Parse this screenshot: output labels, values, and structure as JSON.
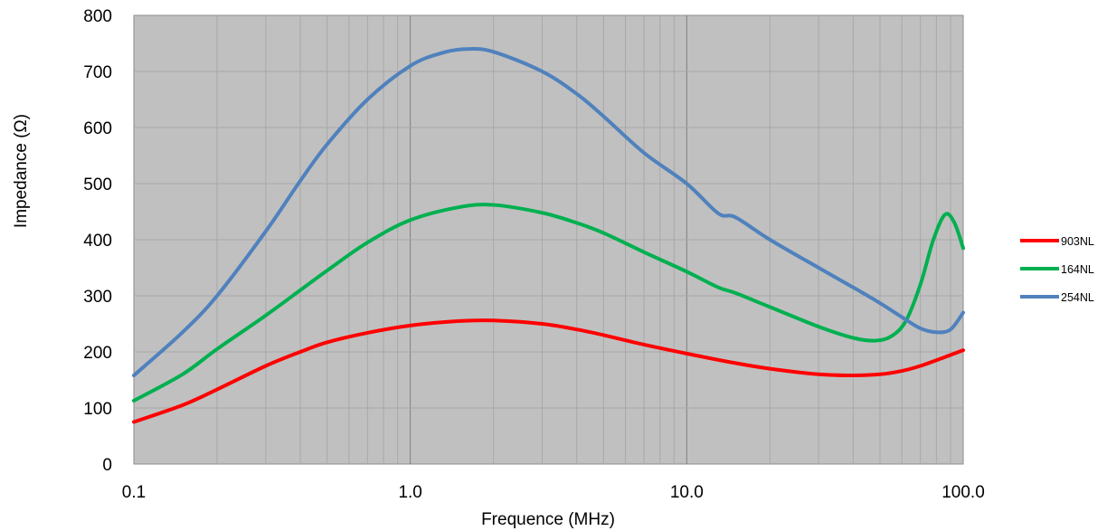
{
  "chart_data": {
    "type": "line",
    "xlabel": "Frequence (MHz)",
    "ylabel": "Impedance (Ω)",
    "x_scale": "log",
    "xlim": [
      0.1,
      100
    ],
    "ylim": [
      0,
      800
    ],
    "x_ticks": [
      0.1,
      1,
      10,
      100
    ],
    "x_tick_labels": [
      "0.1",
      "1.0",
      "10.0",
      "100.0"
    ],
    "y_ticks": [
      0,
      100,
      200,
      300,
      400,
      500,
      600,
      700,
      800
    ],
    "y_tick_labels": [
      "0",
      "100",
      "200",
      "300",
      "400",
      "500",
      "600",
      "700",
      "800"
    ],
    "grid": true,
    "plot_background": "#c0c0c0",
    "legend_position": "right",
    "series": [
      {
        "name": "903NL",
        "color": "#ff0000",
        "points": [
          [
            0.1,
            75
          ],
          [
            0.15,
            105
          ],
          [
            0.2,
            133
          ],
          [
            0.3,
            175
          ],
          [
            0.4,
            200
          ],
          [
            0.5,
            217
          ],
          [
            0.7,
            234
          ],
          [
            1.0,
            247
          ],
          [
            1.5,
            255
          ],
          [
            2.0,
            256
          ],
          [
            3.0,
            250
          ],
          [
            4.0,
            240
          ],
          [
            5.0,
            230
          ],
          [
            7.0,
            213
          ],
          [
            10.0,
            197
          ],
          [
            15.0,
            180
          ],
          [
            20.0,
            170
          ],
          [
            30.0,
            160
          ],
          [
            40.0,
            158
          ],
          [
            50.0,
            160
          ],
          [
            60.0,
            166
          ],
          [
            70.0,
            175
          ],
          [
            85.0,
            190
          ],
          [
            100.0,
            203
          ]
        ]
      },
      {
        "name": "164NL",
        "color": "#00b050",
        "points": [
          [
            0.1,
            113
          ],
          [
            0.15,
            160
          ],
          [
            0.2,
            205
          ],
          [
            0.3,
            265
          ],
          [
            0.4,
            310
          ],
          [
            0.5,
            345
          ],
          [
            0.7,
            395
          ],
          [
            1.0,
            435
          ],
          [
            1.5,
            458
          ],
          [
            2.0,
            462
          ],
          [
            3.0,
            448
          ],
          [
            4.0,
            430
          ],
          [
            5.0,
            412
          ],
          [
            7.0,
            378
          ],
          [
            10.0,
            343
          ],
          [
            13.0,
            315
          ],
          [
            15.0,
            305
          ],
          [
            20.0,
            280
          ],
          [
            30.0,
            245
          ],
          [
            40.0,
            225
          ],
          [
            48.0,
            220
          ],
          [
            55.0,
            228
          ],
          [
            62.0,
            255
          ],
          [
            70.0,
            320
          ],
          [
            78.0,
            400
          ],
          [
            86.0,
            445
          ],
          [
            93.0,
            430
          ],
          [
            100.0,
            385
          ]
        ]
      },
      {
        "name": "254NL",
        "color": "#4f81bd",
        "points": [
          [
            0.1,
            158
          ],
          [
            0.15,
            235
          ],
          [
            0.2,
            300
          ],
          [
            0.3,
            415
          ],
          [
            0.4,
            505
          ],
          [
            0.5,
            570
          ],
          [
            0.7,
            650
          ],
          [
            1.0,
            710
          ],
          [
            1.3,
            733
          ],
          [
            1.6,
            740
          ],
          [
            2.0,
            735
          ],
          [
            3.0,
            700
          ],
          [
            4.0,
            660
          ],
          [
            5.0,
            620
          ],
          [
            7.0,
            555
          ],
          [
            10.0,
            500
          ],
          [
            13.0,
            447
          ],
          [
            15.0,
            440
          ],
          [
            20.0,
            400
          ],
          [
            30.0,
            350
          ],
          [
            40.0,
            315
          ],
          [
            50.0,
            287
          ],
          [
            60.0,
            262
          ],
          [
            70.0,
            242
          ],
          [
            80.0,
            235
          ],
          [
            90.0,
            240
          ],
          [
            100.0,
            270
          ]
        ]
      }
    ]
  }
}
